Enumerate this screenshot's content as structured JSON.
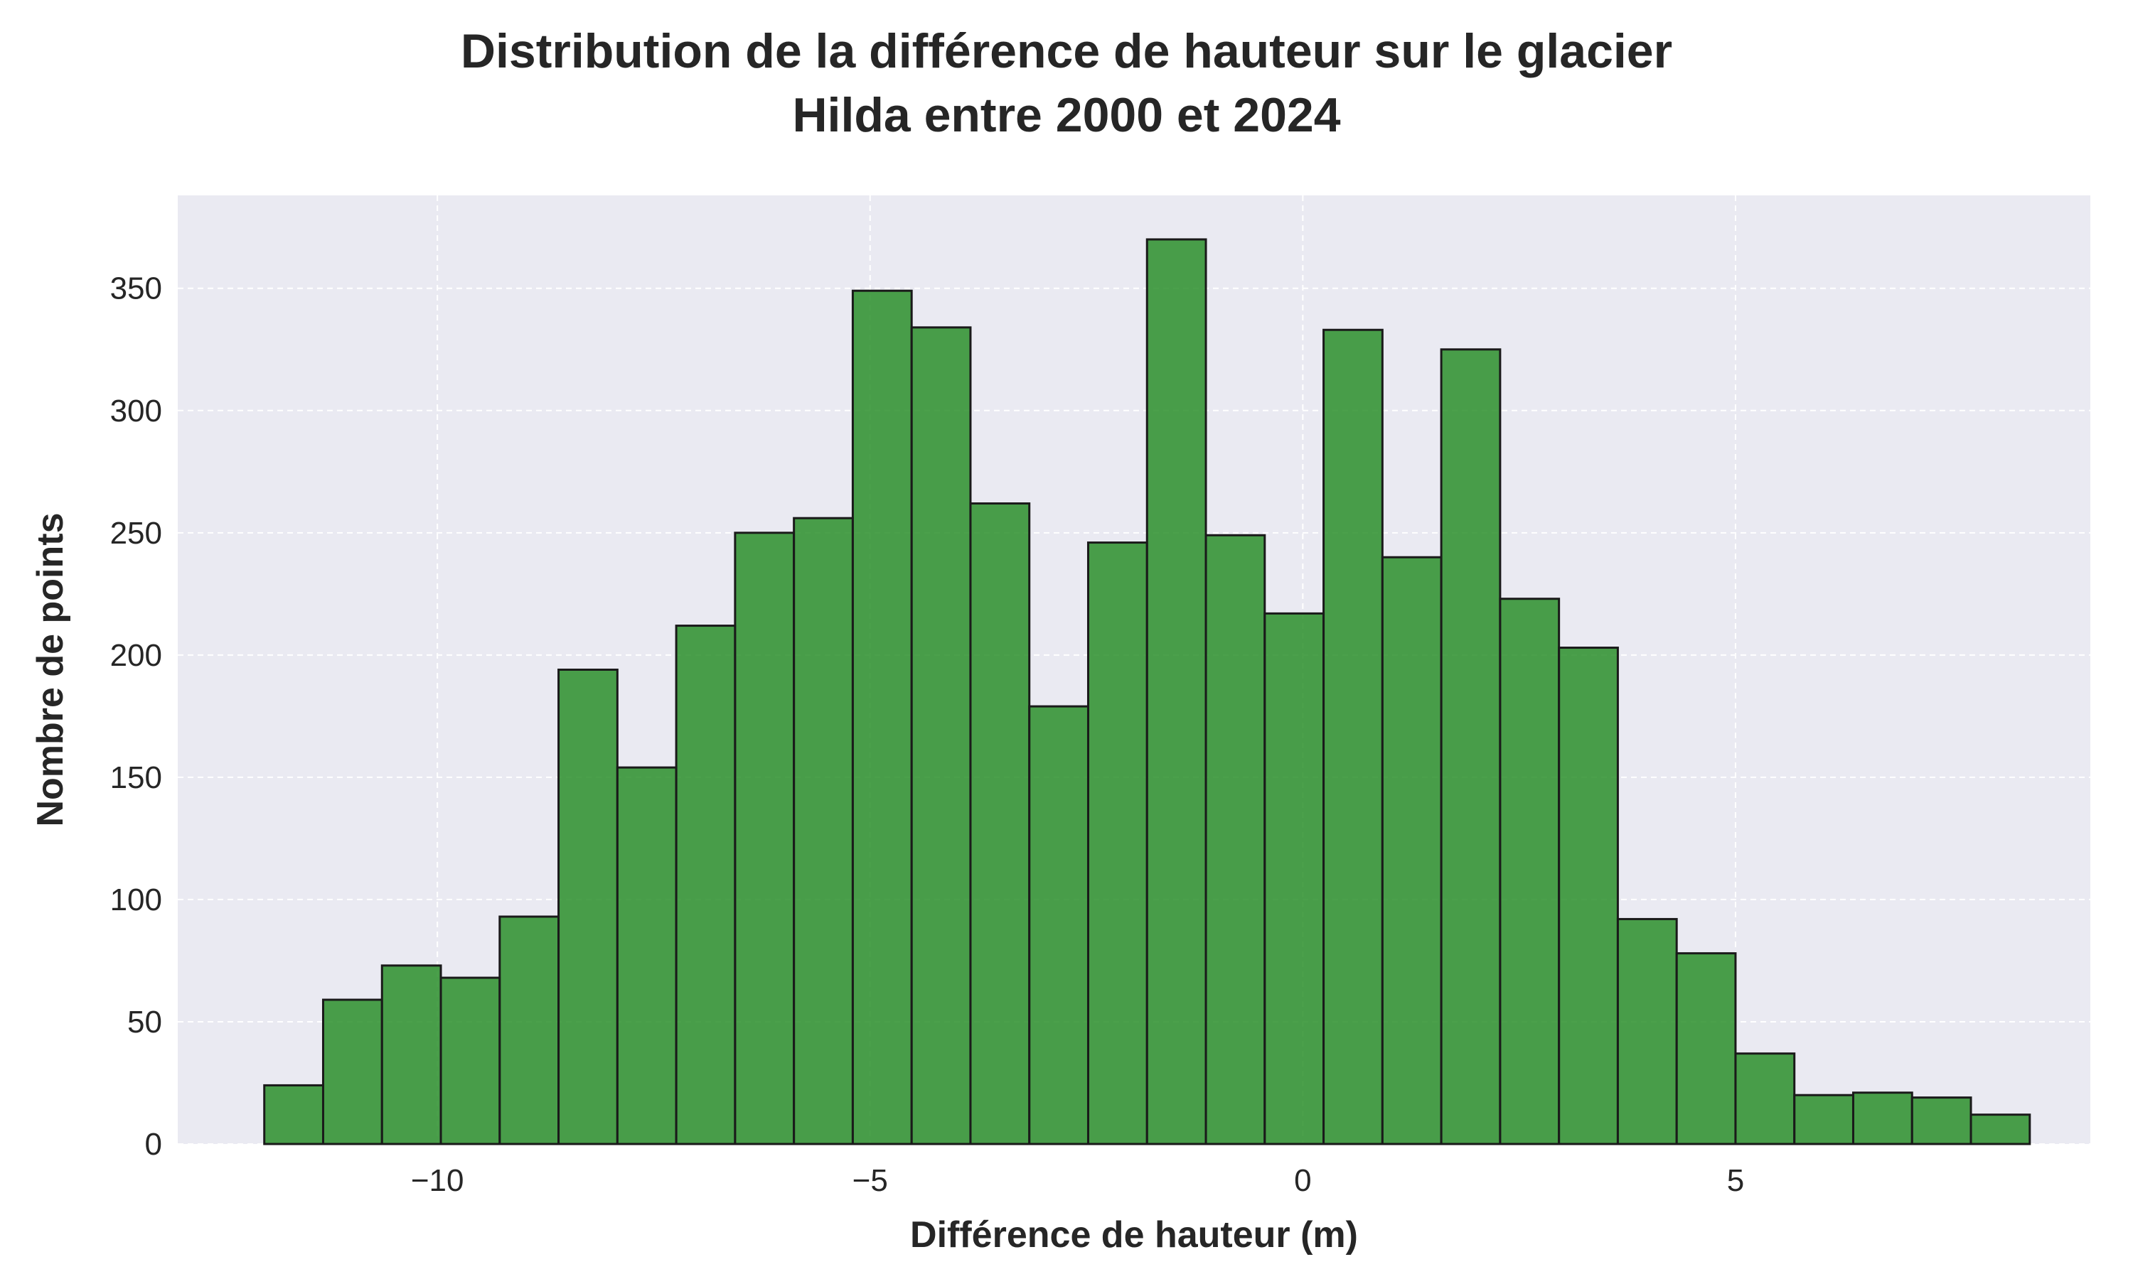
{
  "title_lines": [
    "Distribution de la différence de hauteur sur le glacier",
    "Hilda entre 2000 et 2024"
  ],
  "colors": {
    "bar_fill": "#2b8f2b",
    "bar_edge": "#1a1a1a",
    "plot_background": "#eaeaf2",
    "grid": "#ffffff",
    "text": "#262626"
  },
  "chart_data": {
    "type": "bar",
    "title": "Distribution de la différence de hauteur sur le glacier Hilda entre 2000 et 2024",
    "xlabel": "Différence de hauteur (m)",
    "ylabel": "Nombre de points",
    "xlim": [
      -13.0,
      9.1
    ],
    "ylim": [
      0,
      388
    ],
    "xticks": [
      -10,
      -5,
      0,
      5
    ],
    "xtick_labels": [
      "−10",
      "−5",
      "0",
      "5"
    ],
    "yticks": [
      0,
      50,
      100,
      150,
      200,
      250,
      300,
      350
    ],
    "ytick_labels": [
      "0",
      "50",
      "100",
      "150",
      "200",
      "250",
      "300",
      "350"
    ],
    "grid": true,
    "bin_edges": [
      -12.0,
      -11.32,
      -10.64,
      -9.96,
      -9.28,
      -8.6,
      -7.92,
      -7.24,
      -6.56,
      -5.88,
      -5.2,
      -4.52,
      -3.84,
      -3.16,
      -2.48,
      -1.8,
      -1.12,
      -0.44,
      0.24,
      0.92,
      1.6,
      2.28,
      2.96,
      3.64,
      4.32,
      5.0,
      5.68,
      6.36,
      7.04,
      7.72,
      8.4
    ],
    "values": [
      24,
      59,
      73,
      68,
      93,
      194,
      154,
      212,
      250,
      256,
      349,
      334,
      262,
      179,
      246,
      370,
      249,
      217,
      333,
      240,
      325,
      223,
      203,
      92,
      78,
      37,
      20,
      21,
      19,
      12
    ]
  }
}
